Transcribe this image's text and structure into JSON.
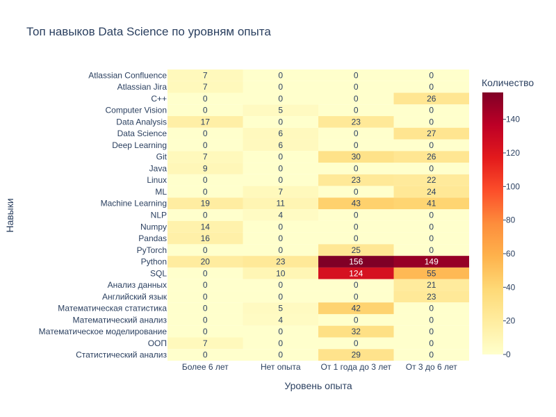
{
  "chart_data": {
    "type": "heatmap",
    "title": "Топ навыков Data Science по уровням опыта",
    "xlabel": "Уровень опыта",
    "ylabel": "Навыки",
    "x": [
      "Более 6 лет",
      "Нет опыта",
      "От 1 года до 3 лет",
      "От 3 до 6 лет"
    ],
    "y": [
      "Atlassian Confluence",
      "Atlassian Jira",
      "C++",
      "Computer Vision",
      "Data Analysis",
      "Data Science",
      "Deep Learning",
      "Git",
      "Java",
      "Linux",
      "ML",
      "Machine Learning",
      "NLP",
      "Numpy",
      "Pandas",
      "PyTorch",
      "Python",
      "SQL",
      "Анализ данных",
      "Английский язык",
      "Математическая статистика",
      "Математический анализ",
      "Математическое моделирование",
      "ООП",
      "Статистический анализ"
    ],
    "z": [
      [
        7,
        0,
        0,
        0
      ],
      [
        7,
        0,
        0,
        0
      ],
      [
        0,
        0,
        0,
        26
      ],
      [
        0,
        5,
        0,
        0
      ],
      [
        17,
        0,
        23,
        0
      ],
      [
        0,
        6,
        0,
        27
      ],
      [
        0,
        6,
        0,
        0
      ],
      [
        7,
        0,
        30,
        26
      ],
      [
        9,
        0,
        0,
        0
      ],
      [
        0,
        0,
        23,
        22
      ],
      [
        0,
        7,
        0,
        24
      ],
      [
        19,
        11,
        43,
        41
      ],
      [
        0,
        4,
        0,
        0
      ],
      [
        14,
        0,
        0,
        0
      ],
      [
        16,
        0,
        0,
        0
      ],
      [
        0,
        0,
        25,
        0
      ],
      [
        20,
        23,
        156,
        149
      ],
      [
        0,
        10,
        124,
        55
      ],
      [
        0,
        0,
        0,
        21
      ],
      [
        0,
        0,
        0,
        23
      ],
      [
        0,
        5,
        42,
        0
      ],
      [
        0,
        4,
        0,
        0
      ],
      [
        0,
        0,
        32,
        0
      ],
      [
        7,
        0,
        0,
        0
      ],
      [
        0,
        0,
        29,
        0
      ]
    ],
    "colorbar": {
      "title": "Количество",
      "colorscale": "YlOrRd",
      "zmin": 0,
      "zmax": 156,
      "ticks": [
        0,
        20,
        40,
        60,
        80,
        100,
        120,
        140
      ]
    }
  }
}
